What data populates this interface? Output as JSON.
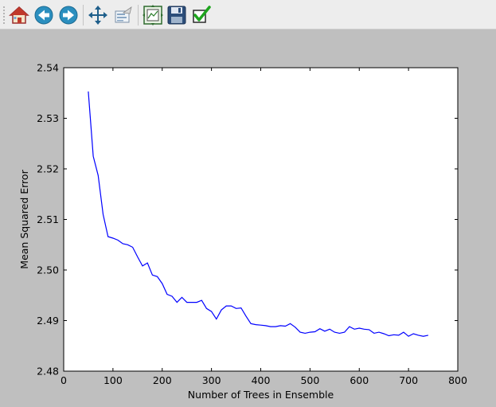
{
  "toolbar": {
    "buttons": [
      {
        "name": "home-icon",
        "title": "Home"
      },
      {
        "name": "back-icon",
        "title": "Back"
      },
      {
        "name": "forward-icon",
        "title": "Forward"
      },
      {
        "name": "pan-icon",
        "title": "Pan"
      },
      {
        "name": "zoom-icon",
        "title": "Zoom"
      },
      {
        "name": "subplots-icon",
        "title": "Configure subplots"
      },
      {
        "name": "save-icon",
        "title": "Save"
      },
      {
        "name": "check-icon",
        "title": "Edit parameters"
      }
    ]
  },
  "colors": {
    "line": "#0000ff",
    "figure_bg": "#bfbfbf",
    "axes_bg": "#ffffff"
  },
  "chart_data": {
    "type": "line",
    "title": "",
    "xlabel": "Number of Trees in Ensemble",
    "ylabel": "Mean Squared Error",
    "xlim": [
      0,
      800
    ],
    "ylim": [
      2.48,
      2.54
    ],
    "xticks": [
      0,
      100,
      200,
      300,
      400,
      500,
      600,
      700,
      800
    ],
    "yticks": [
      2.48,
      2.49,
      2.5,
      2.51,
      2.52,
      2.53,
      2.54
    ],
    "ytick_labels": [
      "2.48",
      "2.49",
      "2.50",
      "2.51",
      "2.52",
      "2.53",
      "2.54"
    ],
    "grid": false,
    "series": [
      {
        "x": [
          50,
          60,
          70,
          80,
          90,
          100,
          110,
          120,
          130,
          140,
          150,
          160,
          170,
          180,
          190,
          200,
          210,
          220,
          230,
          240,
          250,
          260,
          270,
          280,
          290,
          300,
          310,
          320,
          330,
          340,
          350,
          360,
          370,
          380,
          390,
          400,
          410,
          420,
          430,
          440,
          450,
          460,
          470,
          480,
          490,
          500,
          510,
          520,
          530,
          540,
          550,
          560,
          570,
          580,
          590,
          600,
          610,
          620,
          630,
          640,
          650,
          660,
          670,
          680,
          690,
          700,
          710,
          720,
          730,
          740
        ],
        "y": [
          2.5353,
          2.5225,
          2.5187,
          2.511,
          2.5066,
          2.5063,
          2.5059,
          2.5052,
          2.505,
          2.5045,
          2.5026,
          2.5008,
          2.5014,
          2.499,
          2.4987,
          2.4973,
          2.4952,
          2.4948,
          2.4936,
          2.4946,
          2.4936,
          2.4936,
          2.4936,
          2.494,
          2.4924,
          2.4918,
          2.4903,
          2.4921,
          2.4929,
          2.4929,
          2.4924,
          2.4925,
          2.4909,
          2.4894,
          2.4892,
          2.4891,
          2.489,
          2.4888,
          2.4888,
          2.489,
          2.4889,
          2.4894,
          2.4887,
          2.4877,
          2.4875,
          2.4877,
          2.4878,
          2.4884,
          2.4879,
          2.4883,
          2.4877,
          2.4875,
          2.4877,
          2.4888,
          2.4883,
          2.4885,
          2.4883,
          2.4882,
          2.4875,
          2.4877,
          2.4874,
          2.487,
          2.4872,
          2.4871,
          2.4877,
          2.4869,
          2.4874,
          2.4871,
          2.4869,
          2.4871
        ]
      }
    ]
  }
}
